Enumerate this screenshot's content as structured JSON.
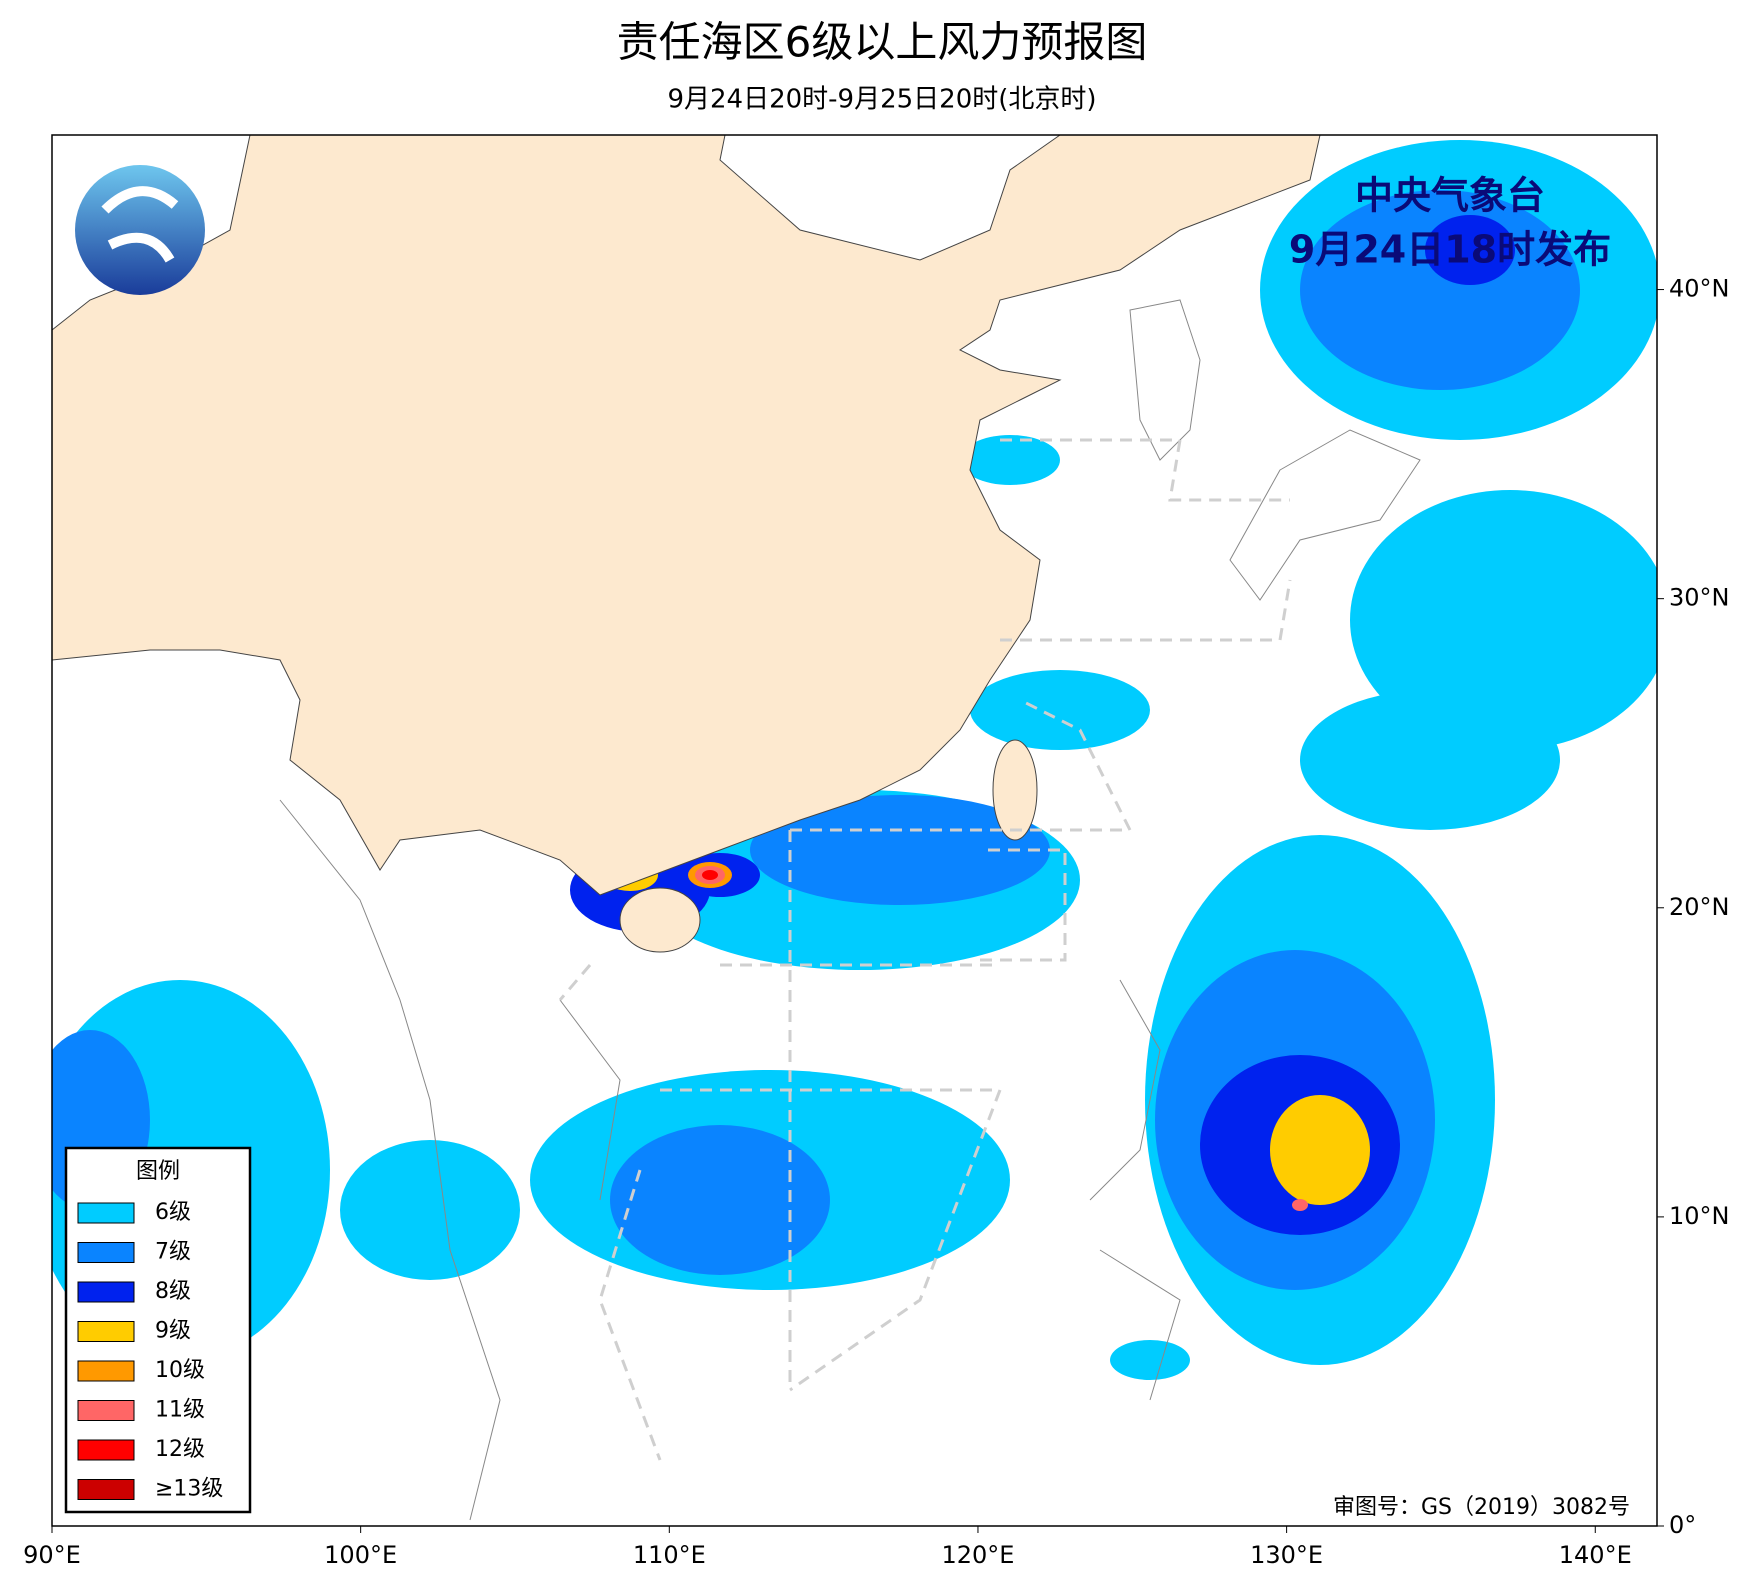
{
  "header": {
    "title": "责任海区6级以上风力预报图",
    "subtitle": "9月24日20时-9月25日20时(北京时)"
  },
  "issuer": {
    "name": "中央气象台",
    "time": "9月24日18时发布"
  },
  "map": {
    "xlim": [
      90,
      142
    ],
    "ylim": [
      0,
      45
    ],
    "xticks": [
      {
        "value": 90,
        "label": "90°E"
      },
      {
        "value": 100,
        "label": "100°E"
      },
      {
        "value": 110,
        "label": "110°E"
      },
      {
        "value": 120,
        "label": "120°E"
      },
      {
        "value": 130,
        "label": "130°E"
      },
      {
        "value": 140,
        "label": "140°E"
      }
    ],
    "yticks": [
      {
        "value": 0,
        "label": "0°"
      },
      {
        "value": 10,
        "label": "10°N"
      },
      {
        "value": 20,
        "label": "20°N"
      },
      {
        "value": 30,
        "label": "30°N"
      },
      {
        "value": 40,
        "label": "40°N"
      }
    ]
  },
  "legend": {
    "title": "图例",
    "items": [
      {
        "label": "6级",
        "color": "#00ccff"
      },
      {
        "label": "7级",
        "color": "#0a84ff"
      },
      {
        "label": "8级",
        "color": "#0022ee"
      },
      {
        "label": "9级",
        "color": "#ffcc00"
      },
      {
        "label": "10级",
        "color": "#ff9900"
      },
      {
        "label": "11级",
        "color": "#ff6666"
      },
      {
        "label": "12级",
        "color": "#ff0000"
      },
      {
        "label": "≥13级",
        "color": "#cc0000"
      }
    ]
  },
  "footer": {
    "approval": "审图号：GS（2019）3082号"
  }
}
